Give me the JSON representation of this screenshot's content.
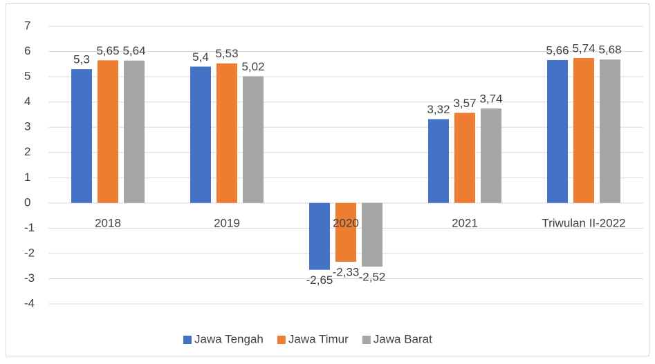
{
  "chart_data": {
    "type": "bar",
    "categories": [
      "2018",
      "2019",
      "2020",
      "2021",
      "Triwulan II-2022"
    ],
    "series": [
      {
        "name": "Jawa Tengah",
        "color": "#4472c4",
        "values": [
          5.3,
          5.4,
          -2.65,
          3.32,
          5.66
        ],
        "value_labels": [
          "5,3",
          "5,4",
          "-2,65",
          "3,32",
          "5,66"
        ]
      },
      {
        "name": "Jawa Timur",
        "color": "#ed7d31",
        "values": [
          5.65,
          5.53,
          -2.33,
          3.57,
          5.74
        ],
        "value_labels": [
          "5,65",
          "5,53",
          "-2,33",
          "3,57",
          "5,74"
        ]
      },
      {
        "name": "Jawa Barat",
        "color": "#a5a5a5",
        "values": [
          5.64,
          5.02,
          -2.52,
          3.74,
          5.68
        ],
        "value_labels": [
          "5,64",
          "5,02",
          "-2,52",
          "3,74",
          "5,68"
        ]
      }
    ],
    "ylim": [
      -4,
      7
    ],
    "yticks": [
      -4,
      -3,
      -2,
      -1,
      0,
      1,
      2,
      3,
      4,
      5,
      6,
      7
    ],
    "grid": true,
    "legend": "bottom"
  }
}
